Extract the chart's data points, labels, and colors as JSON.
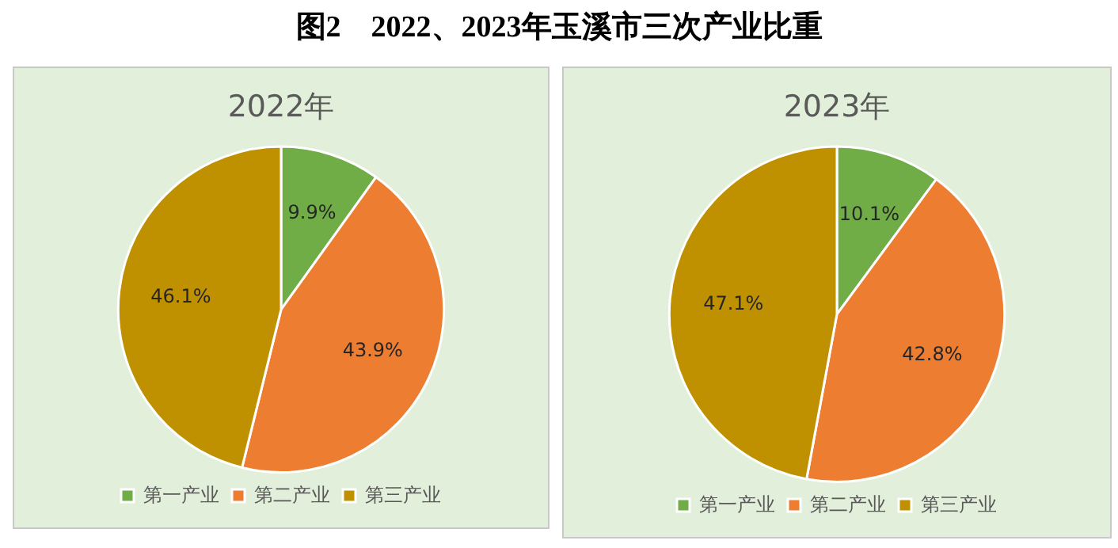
{
  "chart_data": [
    {
      "type": "other",
      "title": "图2　2022、2023年玉溪市三次产业比重"
    },
    {
      "type": "pie",
      "title": "2022年",
      "categories": [
        "第一产业",
        "第二产业",
        "第三产业"
      ],
      "values": [
        9.9,
        43.9,
        46.1
      ],
      "value_labels": [
        "9.9%",
        "43.9%",
        "46.1%"
      ],
      "colors": [
        "#70ad47",
        "#ed7d31",
        "#bf9000"
      ],
      "legend": "bottom"
    },
    {
      "type": "pie",
      "title": "2023年",
      "categories": [
        "第一产业",
        "第二产业",
        "第三产业"
      ],
      "values": [
        10.1,
        42.8,
        47.1
      ],
      "value_labels": [
        "10.1%",
        "42.8%",
        "47.1%"
      ],
      "colors": [
        "#70ad47",
        "#ed7d31",
        "#bf9000"
      ],
      "legend": "bottom"
    }
  ]
}
